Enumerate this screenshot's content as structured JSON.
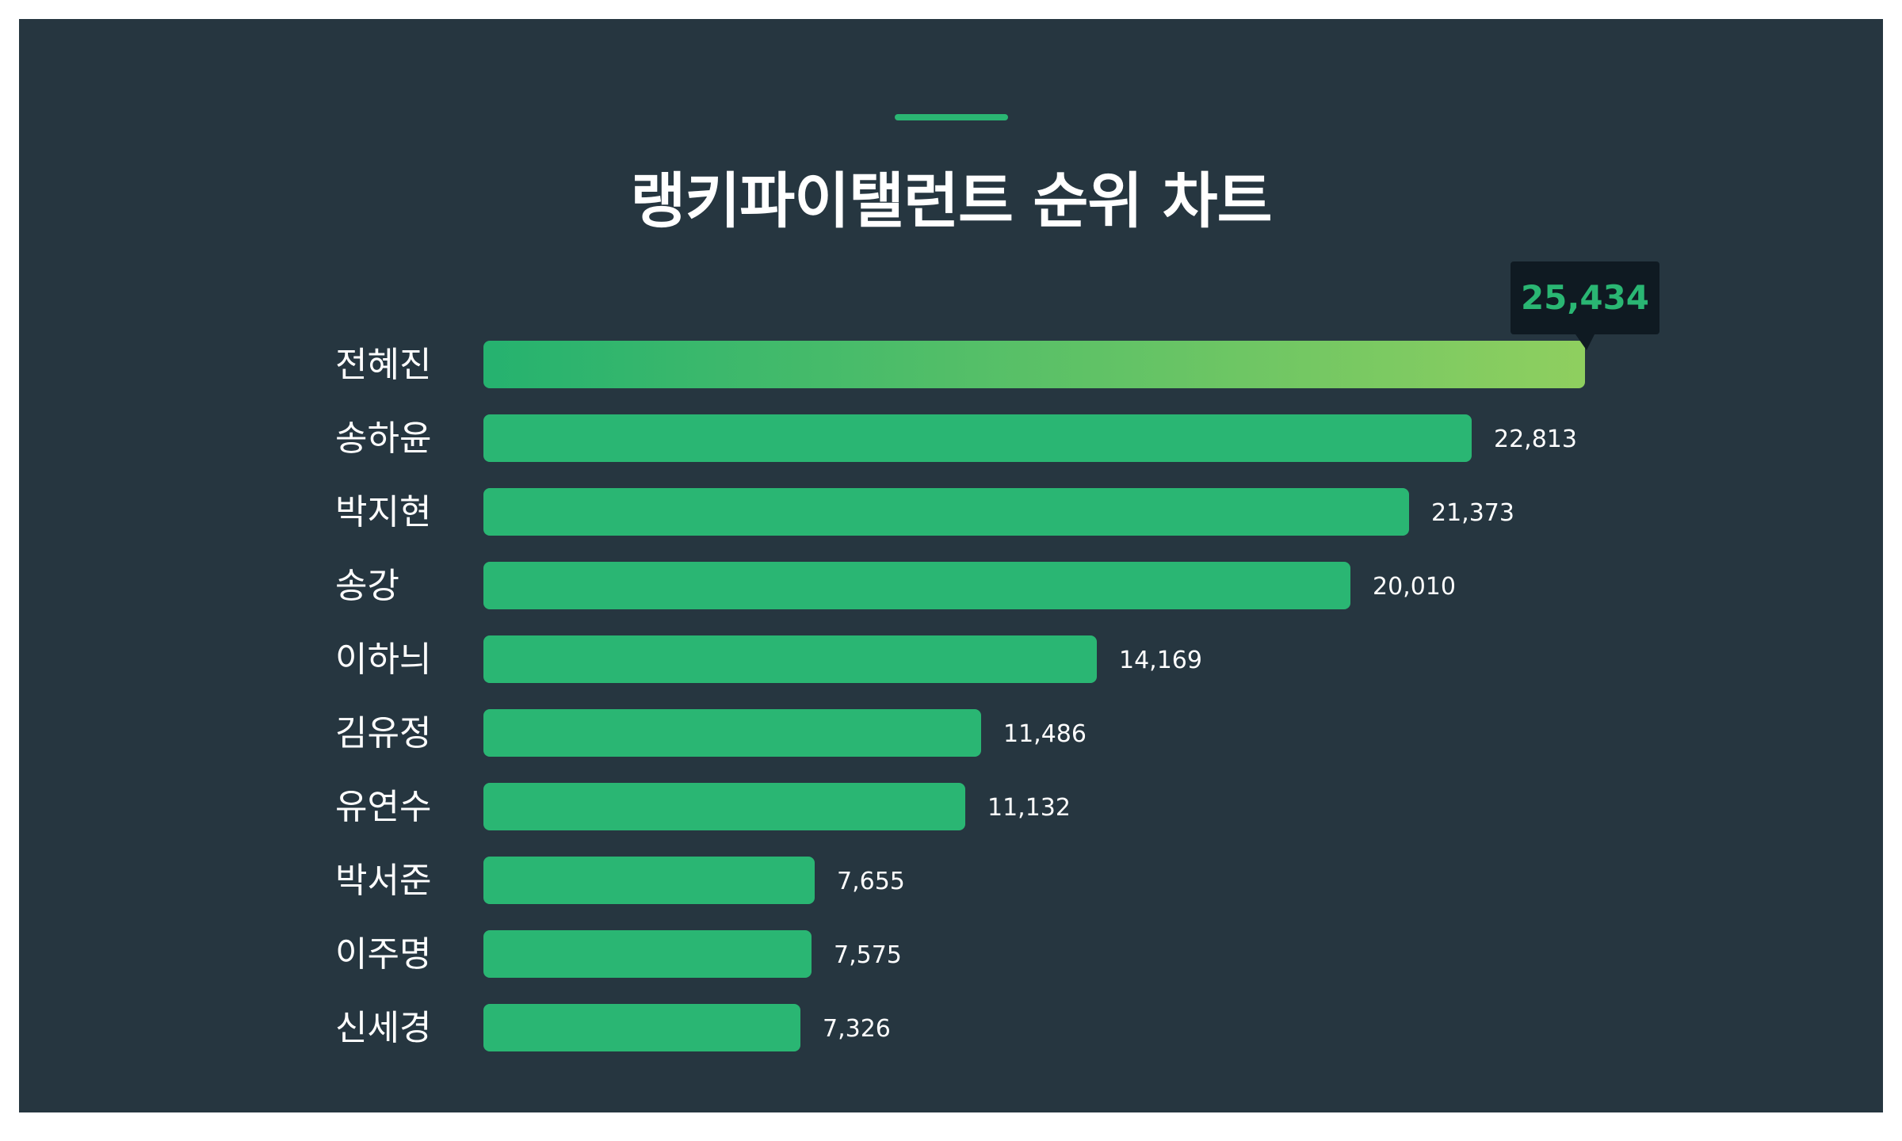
{
  "chart_data": {
    "type": "bar",
    "orientation": "horizontal",
    "title": "랭키파이탤런트 순위 차트",
    "categories": [
      "전혜진",
      "송하윤",
      "박지현",
      "송강",
      "이하늬",
      "김유정",
      "유연수",
      "박서준",
      "이주명",
      "신세경"
    ],
    "values": [
      25434,
      22813,
      21373,
      20010,
      14169,
      11486,
      11132,
      7655,
      7575,
      7326
    ],
    "value_labels": [
      "25,434",
      "22,813",
      "21,373",
      "20,010",
      "14,169",
      "11,486",
      "11,132",
      "7,655",
      "7,575",
      "7,326"
    ],
    "highlight_index": 0,
    "xlim": [
      0,
      25434
    ],
    "grid": false,
    "legend": "none"
  },
  "colors": {
    "background": "#263640",
    "bar": "#2ab673",
    "highlight_gradient_start": "#25b26f",
    "highlight_gradient_end": "#8fcf5f",
    "callout_bg": "#0f1a22",
    "callout_text": "#2ab673",
    "accent": "#2ab673",
    "text": "#ffffff"
  }
}
